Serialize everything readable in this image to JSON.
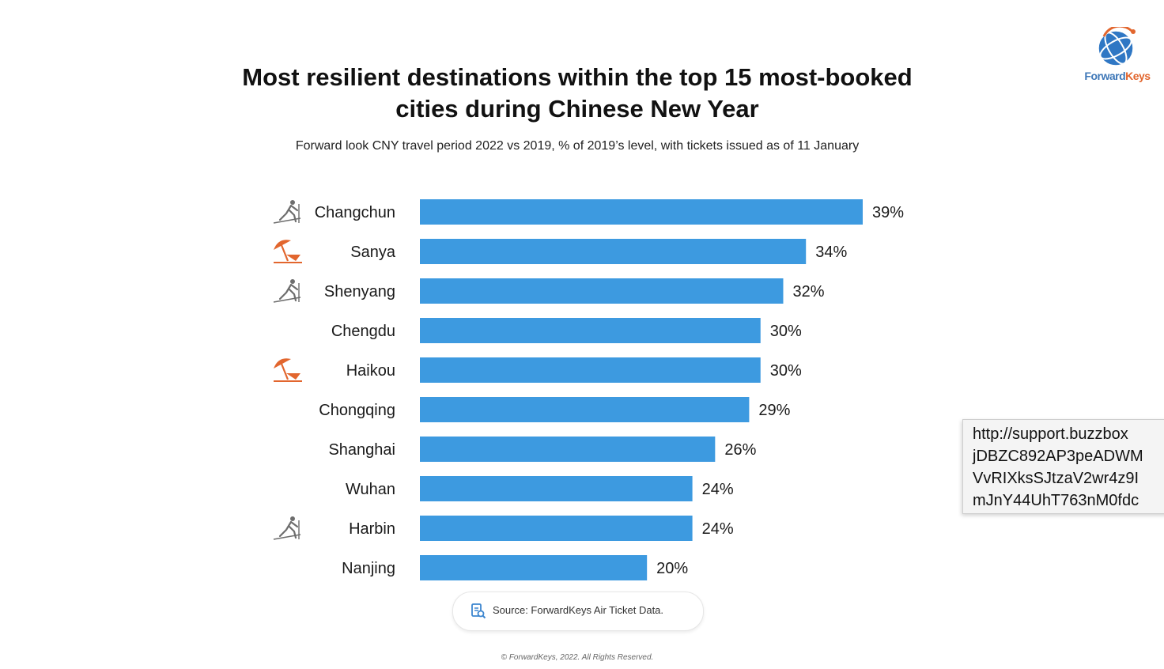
{
  "header": {
    "title_line1": "Most resilient destinations within the top 15 most-booked",
    "title_line2": "cities during Chinese New Year",
    "subtitle": "Forward look CNY travel period 2022 vs 2019, % of 2019’s level, with tickets issued as of 11 January"
  },
  "logo": {
    "text_main": "Forward",
    "text_accent": "Keys"
  },
  "chart_data": {
    "type": "bar",
    "orientation": "horizontal",
    "categories": [
      "Changchun",
      "Sanya",
      "Shenyang",
      "Chengdu",
      "Haikou",
      "Chongqing",
      "Shanghai",
      "Wuhan",
      "Harbin",
      "Nanjing"
    ],
    "values": [
      39,
      34,
      32,
      30,
      30,
      29,
      26,
      24,
      24,
      20
    ],
    "value_labels": [
      "39%",
      "34%",
      "32%",
      "30%",
      "30%",
      "29%",
      "26%",
      "24%",
      "24%",
      "20%"
    ],
    "icons": [
      "skier-icon",
      "beach-umbrella-icon",
      "skier-icon",
      "",
      "beach-umbrella-icon",
      "",
      "",
      "",
      "skier-icon",
      ""
    ],
    "xlim": [
      0,
      39
    ],
    "grid": false,
    "bar_color": "#3d9ae0"
  },
  "colors": {
    "bar": "#3d9ae0",
    "beach_icon": "#e2662e",
    "ski_icon": "#6d6d6d"
  },
  "footer": {
    "source": "Source: ForwardKeys Air Ticket Data.",
    "copyright": "© ForwardKeys, 2022. All Rights Reserved."
  },
  "tooltip": {
    "lines": [
      "http://support.buzzbox",
      "jDBZC892AP3peADWM",
      "VvRIXksSJtzaV2wr4z9I",
      "mJnY44UhT763nM0fdc"
    ]
  }
}
